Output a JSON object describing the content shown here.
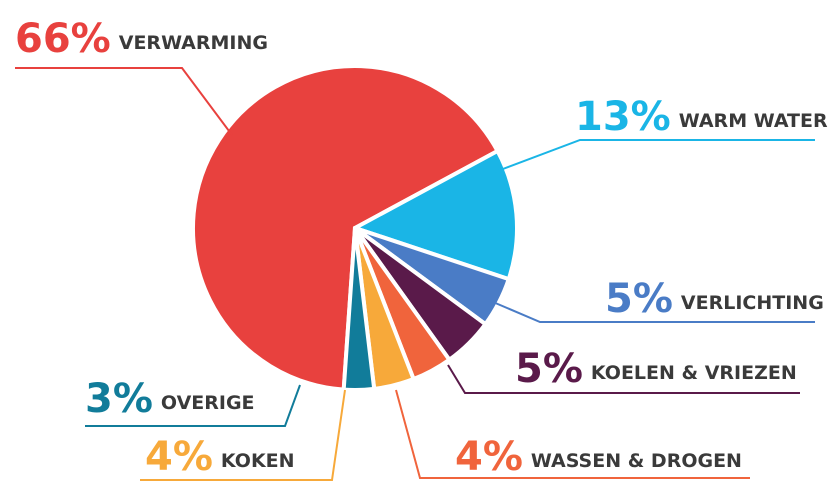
{
  "chart_data": {
    "type": "pie",
    "categories": [
      "VERWARMING",
      "WARM WATER",
      "VERLICHTING",
      "KOELEN & VRIEZEN",
      "WASSEN & DROGEN",
      "KOKEN",
      "OVERIGE"
    ],
    "values": [
      66,
      13,
      5,
      5,
      4,
      4,
      3
    ],
    "value_labels": [
      "66%",
      "13%",
      "5%",
      "5%",
      "4%",
      "4%",
      "3%"
    ],
    "colors": [
      "#e8413e",
      "#1ab5e6",
      "#4a7cc6",
      "#5a1a4a",
      "#f0643c",
      "#f7a93a",
      "#117c9a"
    ]
  }
}
